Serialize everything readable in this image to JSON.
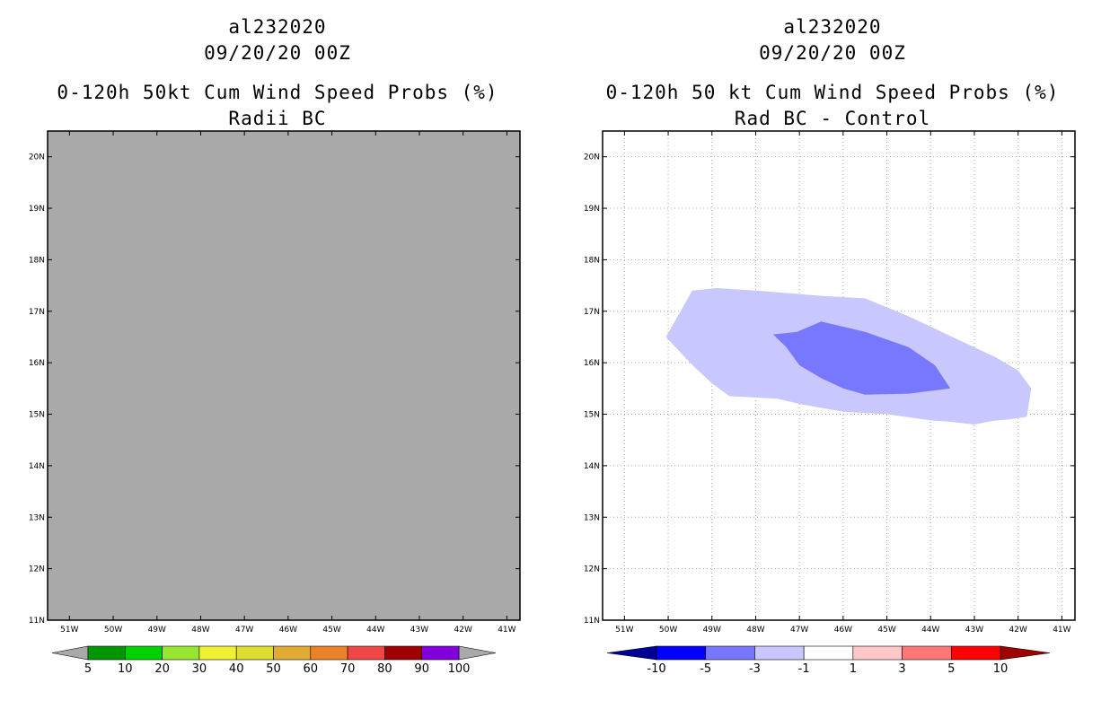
{
  "panels": [
    {
      "storm": "al232020",
      "datetime": "09/20/20 00Z",
      "title": "0-120h 50kt Cum Wind Speed Probs (%)",
      "subtitle": "Radii BC",
      "colors": {
        "plot_fill": "#a9a9a9",
        "frame": "#000000"
      }
    },
    {
      "storm": "al232020",
      "datetime": "09/20/20 00Z",
      "title": "0-120h 50 kt Cum Wind Speed Probs (%)",
      "subtitle": "Rad BC - Control",
      "colors": {
        "light_blue": "#c8c8ff",
        "mid_blue": "#7878ff",
        "grid": "#aaaaaa"
      }
    }
  ],
  "chart_data": [
    {
      "type": "heatmap",
      "title": "0-120h 50kt Cum Wind Speed Probs (%)",
      "subtitle": "Radii BC",
      "xlim": [
        -51.5,
        -40.7
      ],
      "ylim": [
        11,
        20.5
      ],
      "x_ticks": [
        {
          "value": -51,
          "label": "51W"
        },
        {
          "value": -50,
          "label": "50W"
        },
        {
          "value": -49,
          "label": "49W"
        },
        {
          "value": -48,
          "label": "48W"
        },
        {
          "value": -47,
          "label": "47W"
        },
        {
          "value": -46,
          "label": "46W"
        },
        {
          "value": -45,
          "label": "45W"
        },
        {
          "value": -44,
          "label": "44W"
        },
        {
          "value": -43,
          "label": "43W"
        },
        {
          "value": -42,
          "label": "42W"
        },
        {
          "value": -41,
          "label": "41W"
        }
      ],
      "y_ticks": [
        {
          "value": 11,
          "label": "11N"
        },
        {
          "value": 12,
          "label": "12N"
        },
        {
          "value": 13,
          "label": "13N"
        },
        {
          "value": 14,
          "label": "14N"
        },
        {
          "value": 15,
          "label": "15N"
        },
        {
          "value": 16,
          "label": "16N"
        },
        {
          "value": 17,
          "label": "17N"
        },
        {
          "value": 18,
          "label": "18N"
        },
        {
          "value": 19,
          "label": "19N"
        },
        {
          "value": 20,
          "label": "20N"
        }
      ],
      "grid": false,
      "field": "entire domain shaded grey (no probability contours)",
      "colorbar": {
        "labels": [
          "5",
          "10",
          "20",
          "30",
          "40",
          "50",
          "60",
          "70",
          "80",
          "90",
          "100"
        ],
        "colors": [
          "#009600",
          "#00d200",
          "#96e632",
          "#f0f032",
          "#dcdc32",
          "#e1aa32",
          "#eb8228",
          "#f04646",
          "#a00000",
          "#8200dc"
        ],
        "extend_color": "#a9a9a9"
      }
    },
    {
      "type": "heatmap",
      "title": "0-120h 50 kt Cum Wind Speed Probs (%)",
      "subtitle": "Rad BC - Control",
      "xlim": [
        -51.5,
        -40.7
      ],
      "ylim": [
        11,
        20.5
      ],
      "x_ticks": [
        {
          "value": -51,
          "label": "51W"
        },
        {
          "value": -50,
          "label": "50W"
        },
        {
          "value": -49,
          "label": "49W"
        },
        {
          "value": -48,
          "label": "48W"
        },
        {
          "value": -47,
          "label": "47W"
        },
        {
          "value": -46,
          "label": "46W"
        },
        {
          "value": -45,
          "label": "45W"
        },
        {
          "value": -44,
          "label": "44W"
        },
        {
          "value": -43,
          "label": "43W"
        },
        {
          "value": -42,
          "label": "42W"
        },
        {
          "value": -41,
          "label": "41W"
        }
      ],
      "y_ticks": [
        {
          "value": 11,
          "label": "11N"
        },
        {
          "value": 12,
          "label": "12N"
        },
        {
          "value": 13,
          "label": "13N"
        },
        {
          "value": 14,
          "label": "14N"
        },
        {
          "value": 15,
          "label": "15N"
        },
        {
          "value": 16,
          "label": "16N"
        },
        {
          "value": 17,
          "label": "17N"
        },
        {
          "value": 18,
          "label": "18N"
        },
        {
          "value": 19,
          "label": "19N"
        },
        {
          "value": 20,
          "label": "20N"
        }
      ],
      "grid": true,
      "contours": [
        {
          "range": "-3 to -1",
          "color": "#c8c8ff",
          "polygon": [
            [
              -50.05,
              16.5
            ],
            [
              -49.75,
              16.95
            ],
            [
              -49.45,
              17.4
            ],
            [
              -48.9,
              17.45
            ],
            [
              -48.0,
              17.4
            ],
            [
              -46.5,
              17.3
            ],
            [
              -45.5,
              17.25
            ],
            [
              -44.5,
              16.9
            ],
            [
              -43.5,
              16.5
            ],
            [
              -42.5,
              16.1
            ],
            [
              -42.0,
              15.85
            ],
            [
              -41.7,
              15.5
            ],
            [
              -41.8,
              14.95
            ],
            [
              -42.2,
              14.9
            ],
            [
              -42.6,
              14.87
            ],
            [
              -43.0,
              14.8
            ],
            [
              -43.5,
              14.85
            ],
            [
              -44.0,
              14.88
            ],
            [
              -45.0,
              15.0
            ],
            [
              -46.0,
              15.05
            ],
            [
              -47.0,
              15.2
            ],
            [
              -47.5,
              15.3
            ],
            [
              -48.6,
              15.35
            ],
            [
              -49.0,
              15.6
            ],
            [
              -49.5,
              16.0
            ],
            [
              -50.05,
              16.5
            ]
          ]
        },
        {
          "range": "-5 to -3",
          "color": "#7878ff",
          "polygon": [
            [
              -47.6,
              16.55
            ],
            [
              -47.05,
              16.6
            ],
            [
              -46.5,
              16.8
            ],
            [
              -45.5,
              16.6
            ],
            [
              -44.5,
              16.3
            ],
            [
              -43.9,
              15.95
            ],
            [
              -43.55,
              15.5
            ],
            [
              -44.5,
              15.4
            ],
            [
              -45.5,
              15.38
            ],
            [
              -46.0,
              15.5
            ],
            [
              -46.5,
              15.7
            ],
            [
              -47.0,
              15.95
            ],
            [
              -47.3,
              16.3
            ],
            [
              -47.6,
              16.55
            ]
          ]
        }
      ],
      "colorbar": {
        "labels": [
          "-10",
          "-5",
          "-3",
          "-1",
          "1",
          "3",
          "5",
          "10"
        ],
        "colors": [
          "#0000c8",
          "#0000ff",
          "#7878ff",
          "#c8c8ff",
          "#ffffff",
          "#ffc8c8",
          "#ff7878",
          "#ff0000"
        ],
        "extend_low_color": "#000096",
        "extend_high_color": "#a00000"
      }
    }
  ]
}
